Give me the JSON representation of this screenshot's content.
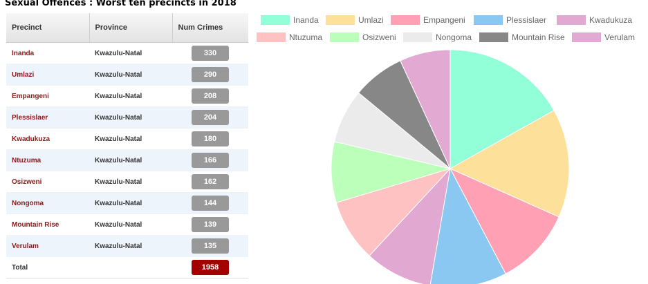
{
  "title": "Sexual Offences : Worst ten precincts in 2018",
  "table": {
    "headers": [
      "Precinct",
      "Province",
      "Num Crimes"
    ],
    "rows": [
      {
        "precinct": "Inanda",
        "province": "Kwazulu-Natal",
        "crimes": "330"
      },
      {
        "precinct": "Umlazi",
        "province": "Kwazulu-Natal",
        "crimes": "290"
      },
      {
        "precinct": "Empangeni",
        "province": "Kwazulu-Natal",
        "crimes": "208"
      },
      {
        "precinct": "Plessislaer",
        "province": "Kwazulu-Natal",
        "crimes": "204"
      },
      {
        "precinct": "Kwadukuza",
        "province": "Kwazulu-Natal",
        "crimes": "180"
      },
      {
        "precinct": "Ntuzuma",
        "province": "Kwazulu-Natal",
        "crimes": "166"
      },
      {
        "precinct": "Osizweni",
        "province": "Kwazulu-Natal",
        "crimes": "162"
      },
      {
        "precinct": "Nongoma",
        "province": "Kwazulu-Natal",
        "crimes": "144"
      },
      {
        "precinct": "Mountain Rise",
        "province": "Kwazulu-Natal",
        "crimes": "139"
      },
      {
        "precinct": "Verulam",
        "province": "Kwazulu-Natal",
        "crimes": "135"
      }
    ],
    "total_label": "Total",
    "total_value": "1958"
  },
  "chart_data": {
    "type": "pie",
    "legend_position": "top",
    "categories": [
      "Inanda",
      "Umlazi",
      "Empangeni",
      "Plessislaer",
      "Kwadukuza",
      "Ntuzuma",
      "Osizweni",
      "Nongoma",
      "Mountain Rise",
      "Verulam"
    ],
    "values": [
      330,
      290,
      208,
      204,
      180,
      166,
      162,
      144,
      139,
      135
    ],
    "colors": [
      "#93ffd8",
      "#fde19a",
      "#ffa0b4",
      "#8ac8f2",
      "#e1a8d1",
      "#ffc2c2",
      "#bbffbb",
      "#ebebeb",
      "#878787",
      "#e2a9d2"
    ]
  }
}
